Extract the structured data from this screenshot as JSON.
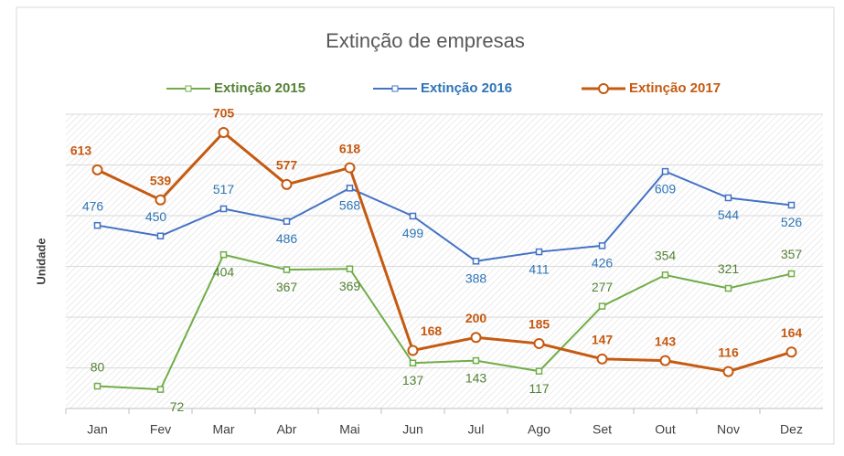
{
  "chart_data": {
    "type": "line",
    "title": "Extinção de empresas",
    "y_label": "Unidade",
    "categories": [
      "Jan",
      "Fev",
      "Mar",
      "Abr",
      "Mai",
      "Jun",
      "Jul",
      "Ago",
      "Set",
      "Out",
      "Nov",
      "Dez"
    ],
    "series": [
      {
        "name": "Extinção 2015",
        "color": "#70ad47",
        "values": [
          80,
          72,
          404,
          367,
          369,
          137,
          143,
          117,
          277,
          354,
          321,
          357
        ]
      },
      {
        "name": "Extinção 2016",
        "color": "#4472c4",
        "values": [
          476,
          450,
          517,
          486,
          568,
          499,
          388,
          411,
          426,
          609,
          544,
          526
        ]
      },
      {
        "name": "Extinção 2017",
        "color": "#c55a11",
        "values": [
          613,
          539,
          705,
          577,
          618,
          168,
          200,
          185,
          147,
          143,
          116,
          164
        ]
      }
    ],
    "ylim": [
      25,
      750
    ],
    "yticks": [
      125,
      250,
      375,
      500,
      625,
      750
    ],
    "grid": true
  }
}
